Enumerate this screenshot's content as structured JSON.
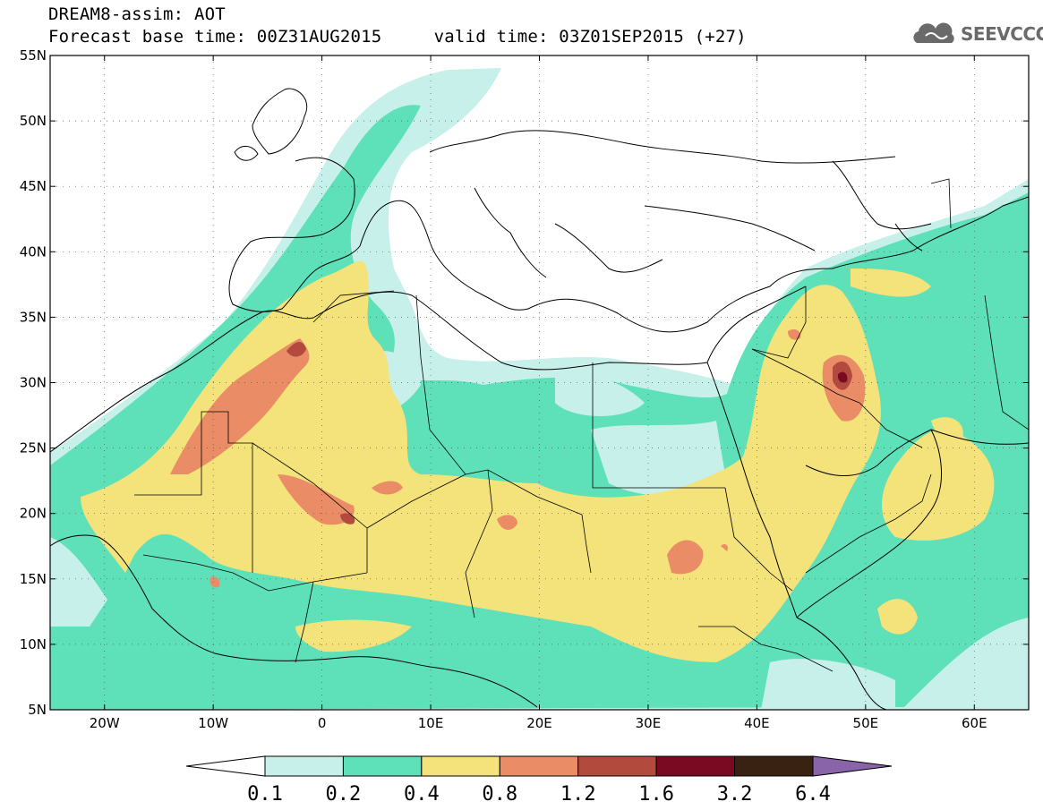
{
  "header": {
    "title_line1": "DREAM8-assim: AOT",
    "title_line2": "Forecast base time: 00Z31AUG2015     valid time: 03Z01SEP2015 (+27)"
  },
  "logo": {
    "text": "SEEVCCC",
    "icon": "cloud-icon"
  },
  "map": {
    "lon_range": [
      -25,
      65
    ],
    "lat_range": [
      5,
      55
    ],
    "lat_labels": [
      {
        "v": 55,
        "t": "55N"
      },
      {
        "v": 50,
        "t": "50N"
      },
      {
        "v": 45,
        "t": "45N"
      },
      {
        "v": 40,
        "t": "40N"
      },
      {
        "v": 35,
        "t": "35N"
      },
      {
        "v": 30,
        "t": "30N"
      },
      {
        "v": 25,
        "t": "25N"
      },
      {
        "v": 20,
        "t": "20N"
      },
      {
        "v": 15,
        "t": "15N"
      },
      {
        "v": 10,
        "t": "10N"
      },
      {
        "v": 5,
        "t": "5N"
      }
    ],
    "lon_labels": [
      {
        "v": -20,
        "t": "20W"
      },
      {
        "v": -10,
        "t": "10W"
      },
      {
        "v": 0,
        "t": "0"
      },
      {
        "v": 10,
        "t": "10E"
      },
      {
        "v": 20,
        "t": "20E"
      },
      {
        "v": 30,
        "t": "30E"
      },
      {
        "v": 40,
        "t": "40E"
      },
      {
        "v": 50,
        "t": "50E"
      },
      {
        "v": 60,
        "t": "60E"
      }
    ],
    "grid": "dotted"
  },
  "colorbar": {
    "labels": [
      "0.1",
      "0.2",
      "0.4",
      "0.8",
      "1.2",
      "1.6",
      "3.2",
      "6.4"
    ],
    "colors": [
      "#ffffff",
      "#c8f0ea",
      "#5ee0b8",
      "#f4e27a",
      "#ea8c66",
      "#b24a3e",
      "#7a0a22",
      "#3a2212",
      "#8a64a8"
    ]
  },
  "colors": {
    "c02": "#c8f0ea",
    "c04": "#5ee0b8",
    "c08": "#f4e27a",
    "c12": "#ea8c66",
    "c16": "#b24a3e",
    "c32": "#7a0a22"
  }
}
